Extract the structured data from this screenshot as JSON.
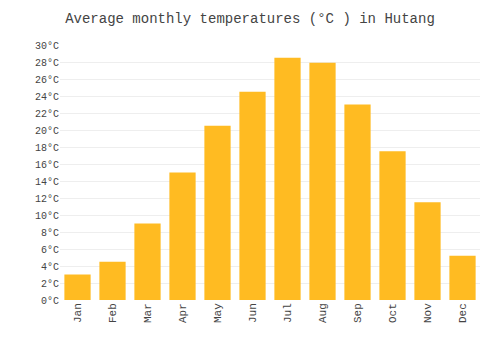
{
  "chart_data": {
    "type": "bar",
    "title": "Average monthly temperatures (°C ) in Hutang",
    "categories": [
      "Jan",
      "Feb",
      "Mar",
      "Apr",
      "May",
      "Jun",
      "Jul",
      "Aug",
      "Sep",
      "Oct",
      "Nov",
      "Dec"
    ],
    "values": [
      3,
      4.5,
      9,
      15,
      20.5,
      24.5,
      28.5,
      27.9,
      23,
      17.5,
      11.5,
      5.2
    ],
    "color": "#FFBB22",
    "ylim": [
      0,
      30
    ],
    "yticks": [
      {
        "value": 0,
        "label": "0°C"
      },
      {
        "value": 2,
        "label": "2°C"
      },
      {
        "value": 4,
        "label": "4°C"
      },
      {
        "value": 6,
        "label": "6°C"
      },
      {
        "value": 8,
        "label": "8°C"
      },
      {
        "value": 10,
        "label": "10°C"
      },
      {
        "value": 12,
        "label": "12°C"
      },
      {
        "value": 14,
        "label": "14°C"
      },
      {
        "value": 16,
        "label": "16°C"
      },
      {
        "value": 18,
        "label": "18°C"
      },
      {
        "value": 20,
        "label": "20°C"
      },
      {
        "value": 22,
        "label": "22°C"
      },
      {
        "value": 24,
        "label": "24°C"
      },
      {
        "value": 26,
        "label": "26°C"
      },
      {
        "value": 28,
        "label": "28°C"
      },
      {
        "value": 30,
        "label": "30°C"
      }
    ],
    "grid": true
  }
}
